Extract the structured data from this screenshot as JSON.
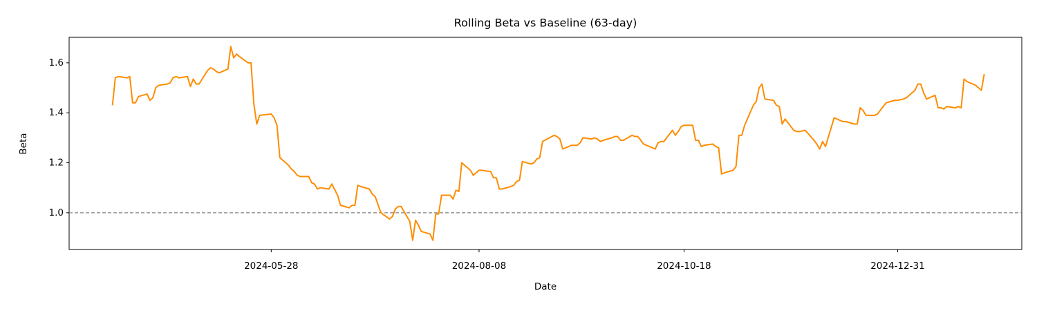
{
  "chart_data": {
    "type": "line",
    "title": "Rolling Beta vs Baseline (63-day)",
    "x_label": "Date",
    "y_label": "Beta",
    "x": [
      "2024-04-03",
      "2024-04-04",
      "2024-04-05",
      "2024-04-08",
      "2024-04-09",
      "2024-04-10",
      "2024-04-11",
      "2024-04-12",
      "2024-04-15",
      "2024-04-16",
      "2024-04-17",
      "2024-04-18",
      "2024-04-19",
      "2024-04-22",
      "2024-04-23",
      "2024-04-24",
      "2024-04-25",
      "2024-04-26",
      "2024-04-29",
      "2024-04-30",
      "2024-05-01",
      "2024-05-02",
      "2024-05-03",
      "2024-05-06",
      "2024-05-07",
      "2024-05-08",
      "2024-05-09",
      "2024-05-10",
      "2024-05-13",
      "2024-05-14",
      "2024-05-15",
      "2024-05-16",
      "2024-05-17",
      "2024-05-20",
      "2024-05-21",
      "2024-05-22",
      "2024-05-23",
      "2024-05-24",
      "2024-05-28",
      "2024-05-29",
      "2024-05-30",
      "2024-05-31",
      "2024-06-03",
      "2024-06-04",
      "2024-06-05",
      "2024-06-06",
      "2024-06-07",
      "2024-06-10",
      "2024-06-11",
      "2024-06-12",
      "2024-06-13",
      "2024-06-14",
      "2024-06-17",
      "2024-06-18",
      "2024-06-20",
      "2024-06-21",
      "2024-06-24",
      "2024-06-25",
      "2024-06-26",
      "2024-06-27",
      "2024-06-28",
      "2024-07-01",
      "2024-07-02",
      "2024-07-03",
      "2024-07-05",
      "2024-07-08",
      "2024-07-09",
      "2024-07-10",
      "2024-07-11",
      "2024-07-12",
      "2024-07-15",
      "2024-07-16",
      "2024-07-17",
      "2024-07-18",
      "2024-07-19",
      "2024-07-22",
      "2024-07-23",
      "2024-07-24",
      "2024-07-25",
      "2024-07-26",
      "2024-07-29",
      "2024-07-30",
      "2024-07-31",
      "2024-08-01",
      "2024-08-02",
      "2024-08-05",
      "2024-08-06",
      "2024-08-07",
      "2024-08-08",
      "2024-08-09",
      "2024-08-12",
      "2024-08-13",
      "2024-08-14",
      "2024-08-15",
      "2024-08-16",
      "2024-08-19",
      "2024-08-20",
      "2024-08-21",
      "2024-08-22",
      "2024-08-23",
      "2024-08-26",
      "2024-08-27",
      "2024-08-28",
      "2024-08-29",
      "2024-08-30",
      "2024-09-03",
      "2024-09-04",
      "2024-09-05",
      "2024-09-06",
      "2024-09-09",
      "2024-09-10",
      "2024-09-11",
      "2024-09-12",
      "2024-09-13",
      "2024-09-16",
      "2024-09-17",
      "2024-09-18",
      "2024-09-19",
      "2024-09-20",
      "2024-09-23",
      "2024-09-24",
      "2024-09-25",
      "2024-09-26",
      "2024-09-27",
      "2024-09-30",
      "2024-10-01",
      "2024-10-02",
      "2024-10-03",
      "2024-10-04",
      "2024-10-07",
      "2024-10-08",
      "2024-10-09",
      "2024-10-10",
      "2024-10-11",
      "2024-10-14",
      "2024-10-15",
      "2024-10-16",
      "2024-10-17",
      "2024-10-18",
      "2024-10-21",
      "2024-10-22",
      "2024-10-23",
      "2024-10-24",
      "2024-10-25",
      "2024-10-28",
      "2024-10-29",
      "2024-10-30",
      "2024-10-31",
      "2024-11-01",
      "2024-11-04",
      "2024-11-05",
      "2024-11-06",
      "2024-11-07",
      "2024-11-08",
      "2024-11-11",
      "2024-11-12",
      "2024-11-13",
      "2024-11-14",
      "2024-11-15",
      "2024-11-18",
      "2024-11-19",
      "2024-11-20",
      "2024-11-21",
      "2024-11-22",
      "2024-11-25",
      "2024-11-26",
      "2024-11-27",
      "2024-11-29",
      "2024-12-02",
      "2024-12-03",
      "2024-12-04",
      "2024-12-05",
      "2024-12-06",
      "2024-12-09",
      "2024-12-10",
      "2024-12-11",
      "2024-12-12",
      "2024-12-13",
      "2024-12-16",
      "2024-12-17",
      "2024-12-18",
      "2024-12-19",
      "2024-12-20",
      "2024-12-23",
      "2024-12-24",
      "2024-12-26",
      "2024-12-27",
      "2024-12-30",
      "2024-12-31",
      "2025-01-02",
      "2025-01-03",
      "2025-01-06",
      "2025-01-07",
      "2025-01-08",
      "2025-01-09",
      "2025-01-10",
      "2025-01-13",
      "2025-01-14",
      "2025-01-15",
      "2025-01-16",
      "2025-01-17",
      "2025-01-20",
      "2025-01-21",
      "2025-01-22",
      "2025-01-23",
      "2025-01-24",
      "2025-01-27",
      "2025-01-28",
      "2025-01-29",
      "2025-01-30"
    ],
    "series": [
      {
        "color": "#ff8c00",
        "values": [
          1.43,
          1.54,
          1.545,
          1.54,
          1.545,
          1.44,
          1.44,
          1.465,
          1.475,
          1.45,
          1.46,
          1.5,
          1.51,
          1.515,
          1.52,
          1.54,
          1.545,
          1.54,
          1.545,
          1.505,
          1.535,
          1.515,
          1.515,
          1.57,
          1.58,
          1.575,
          1.565,
          1.56,
          1.575,
          1.665,
          1.62,
          1.635,
          1.625,
          1.6,
          1.6,
          1.435,
          1.355,
          1.39,
          1.395,
          1.38,
          1.35,
          1.22,
          1.19,
          1.175,
          1.165,
          1.15,
          1.145,
          1.145,
          1.12,
          1.115,
          1.095,
          1.1,
          1.095,
          1.115,
          1.07,
          1.03,
          1.02,
          1.03,
          1.03,
          1.11,
          1.105,
          1.095,
          1.075,
          1.065,
          1.0,
          0.975,
          0.985,
          1.015,
          1.025,
          1.025,
          0.965,
          0.89,
          0.97,
          0.95,
          0.925,
          0.915,
          0.89,
          0.995,
          0.995,
          1.07,
          1.07,
          1.055,
          1.09,
          1.085,
          1.2,
          1.17,
          1.15,
          1.16,
          1.17,
          1.17,
          1.165,
          1.14,
          1.14,
          1.095,
          1.095,
          1.105,
          1.11,
          1.125,
          1.13,
          1.205,
          1.195,
          1.2,
          1.215,
          1.22,
          1.285,
          1.31,
          1.305,
          1.295,
          1.255,
          1.27,
          1.27,
          1.27,
          1.28,
          1.3,
          1.295,
          1.3,
          1.295,
          1.285,
          1.29,
          1.3,
          1.305,
          1.305,
          1.29,
          1.29,
          1.31,
          1.305,
          1.305,
          1.29,
          1.275,
          1.26,
          1.255,
          1.28,
          1.285,
          1.285,
          1.33,
          1.31,
          1.325,
          1.345,
          1.35,
          1.35,
          1.29,
          1.29,
          1.265,
          1.27,
          1.275,
          1.265,
          1.26,
          1.155,
          1.16,
          1.17,
          1.185,
          1.31,
          1.31,
          1.35,
          1.43,
          1.445,
          1.5,
          1.515,
          1.455,
          1.45,
          1.43,
          1.425,
          1.355,
          1.375,
          1.33,
          1.325,
          1.325,
          1.33,
          1.29,
          1.275,
          1.255,
          1.285,
          1.265,
          1.38,
          1.375,
          1.37,
          1.365,
          1.365,
          1.355,
          1.355,
          1.42,
          1.41,
          1.39,
          1.39,
          1.395,
          1.425,
          1.44,
          1.45,
          1.45,
          1.455,
          1.46,
          1.49,
          1.515,
          1.515,
          1.48,
          1.455,
          1.47,
          1.42,
          1.42,
          1.415,
          1.425,
          1.42,
          1.425,
          1.42,
          1.535,
          1.525,
          1.51,
          1.5,
          1.49,
          1.555
        ]
      }
    ],
    "baseline": {
      "value": 1,
      "color": "#808080",
      "style": "dashed"
    },
    "xlim": [
      "2024-03-19",
      "2025-02-12"
    ],
    "xticks": [
      "2024-05-28",
      "2024-08-08",
      "2024-10-18",
      "2024-12-31"
    ],
    "ylim": [
      0.853,
      1.702
    ],
    "yticks": [
      {
        "value": 1,
        "label": "1.0"
      },
      1.2,
      1.4,
      1.6
    ],
    "grid": false
  }
}
